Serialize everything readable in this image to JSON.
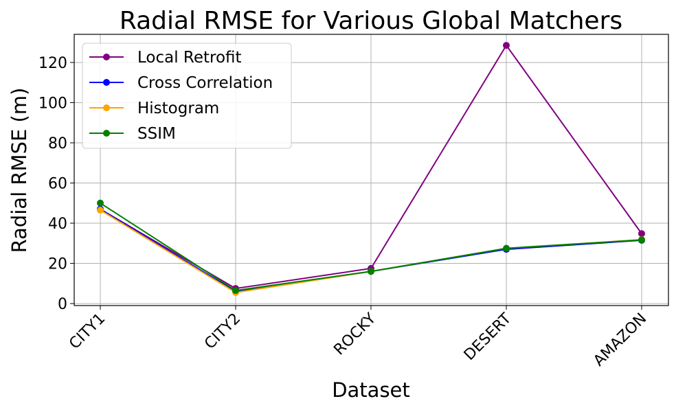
{
  "chart_data": {
    "type": "line",
    "title": "Radial RMSE for Various Global Matchers",
    "xlabel": "Dataset",
    "ylabel": "Radial RMSE (m)",
    "categories": [
      "CITY1",
      "CITY2",
      "ROCKY",
      "DESERT",
      "AMAZON"
    ],
    "ylim": [
      -1,
      134
    ],
    "yticks": [
      0,
      20,
      40,
      60,
      80,
      100,
      120
    ],
    "grid": true,
    "legend_position": "top-left",
    "series": [
      {
        "name": "Local Retrofit",
        "color": "#800080",
        "values": [
          47.0,
          7.5,
          17.5,
          128.5,
          34.8
        ]
      },
      {
        "name": "Cross Correlation",
        "color": "#0000ff",
        "values": [
          47.0,
          6.0,
          16.0,
          27.0,
          31.5
        ]
      },
      {
        "name": "Histogram",
        "color": "#ffa500",
        "values": [
          46.5,
          5.5,
          16.0,
          27.5,
          31.8
        ]
      },
      {
        "name": "SSIM",
        "color": "#008000",
        "values": [
          50.0,
          6.5,
          16.0,
          27.5,
          31.7
        ]
      }
    ]
  }
}
